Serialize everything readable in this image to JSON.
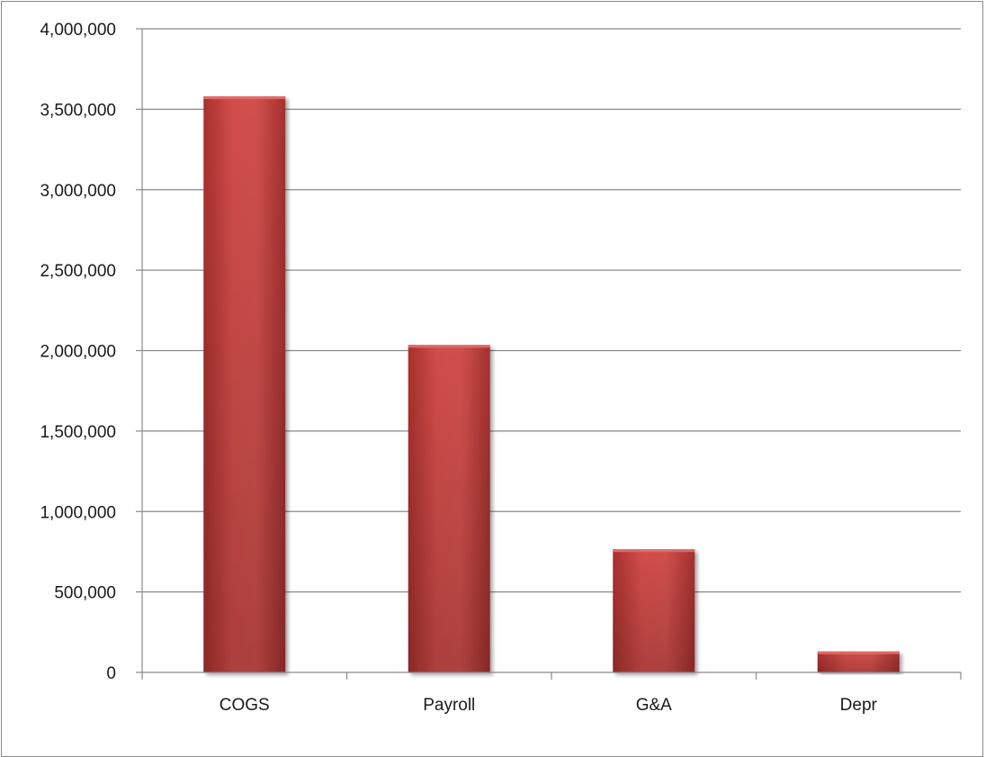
{
  "chart_data": {
    "type": "bar",
    "title": "",
    "xlabel": "",
    "ylabel": "",
    "categories": [
      "COGS",
      "Payroll",
      "G&A",
      "Depr"
    ],
    "values": [
      3580000,
      2035000,
      765000,
      130000
    ],
    "ylim": [
      0,
      4000000
    ],
    "yticks": [
      0,
      500000,
      1000000,
      1500000,
      2000000,
      2500000,
      3000000,
      3500000,
      4000000
    ],
    "ytick_labels": [
      "0",
      "500,000",
      "1,000,000",
      "1,500,000",
      "2,000,000",
      "2,500,000",
      "3,000,000",
      "3,500,000",
      "4,000,000"
    ],
    "grid": true,
    "legend": "none",
    "bar_color": "#c9413f"
  }
}
